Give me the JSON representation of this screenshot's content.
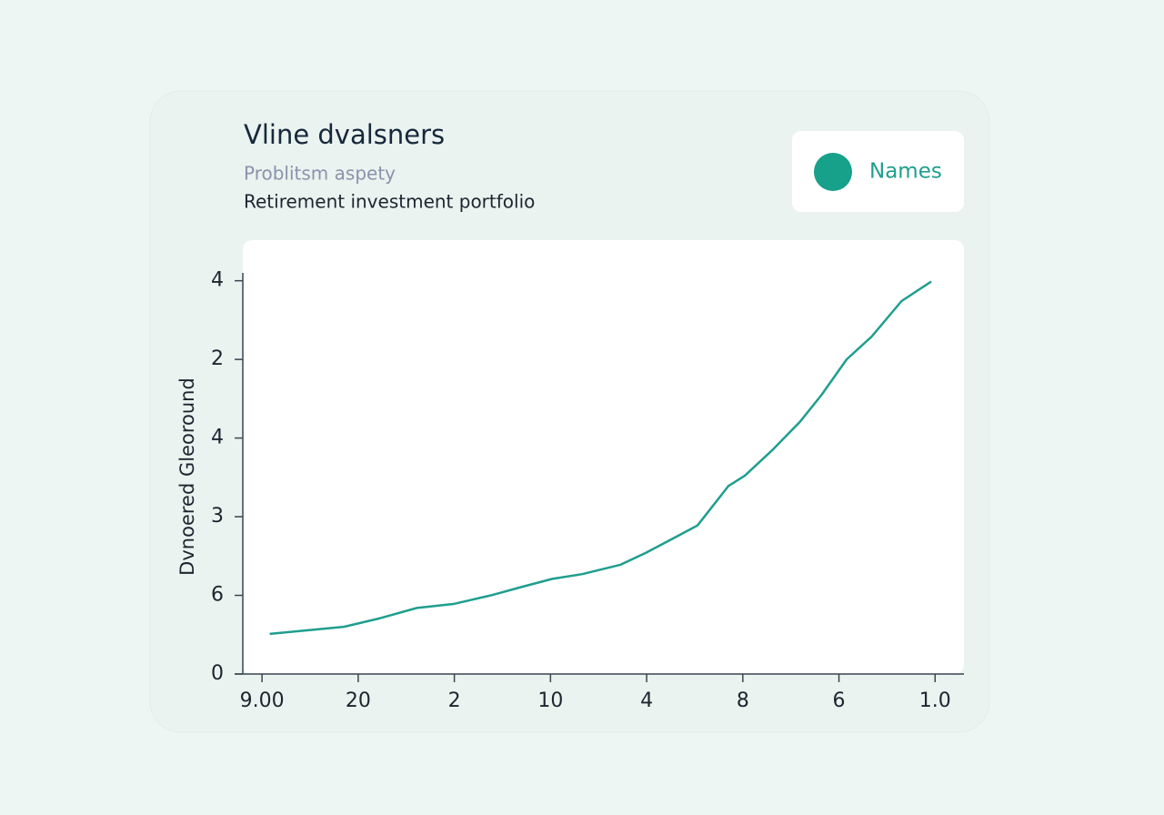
{
  "chart_data": {
    "type": "line",
    "title": "Vline dvalsners",
    "subtitle": "Problitsm aspety",
    "description": "Retirement investment portfolio",
    "y_label": "Dvnoered Gleoround",
    "xlim": [
      -0.2,
      7.3
    ],
    "xticks": [
      {
        "value": 0,
        "label": "9.00"
      },
      {
        "value": 1,
        "label": "20"
      },
      2,
      {
        "value": 3,
        "label": "10"
      },
      4,
      {
        "value": 5,
        "label": "8"
      },
      {
        "value": 6,
        "label": "6"
      },
      {
        "value": 7,
        "label": "1.0"
      }
    ],
    "ylim": [
      0,
      5.1
    ],
    "yticks": [
      0,
      {
        "value": 1,
        "label": "6"
      },
      {
        "value": 2,
        "label": "3"
      },
      {
        "value": 3,
        "label": "4"
      },
      {
        "value": 4,
        "label": "2"
      },
      {
        "value": 5,
        "label": "4"
      }
    ],
    "series": [
      {
        "name": "Names",
        "color": "#1f9e8e",
        "x": [
          0.08,
          0.85,
          1.23,
          1.61,
          1.99,
          2.38,
          2.71,
          3.02,
          3.33,
          3.73,
          3.99,
          4.27,
          4.53,
          4.85,
          5.02,
          5.31,
          5.59,
          5.82,
          6.08,
          6.34,
          6.65,
          6.96
        ],
        "values": [
          0.51,
          0.6,
          0.71,
          0.84,
          0.89,
          1.0,
          1.11,
          1.21,
          1.27,
          1.39,
          1.54,
          1.72,
          1.89,
          2.39,
          2.52,
          2.85,
          3.2,
          3.55,
          4.0,
          4.29,
          4.74,
          4.99
        ]
      }
    ]
  }
}
